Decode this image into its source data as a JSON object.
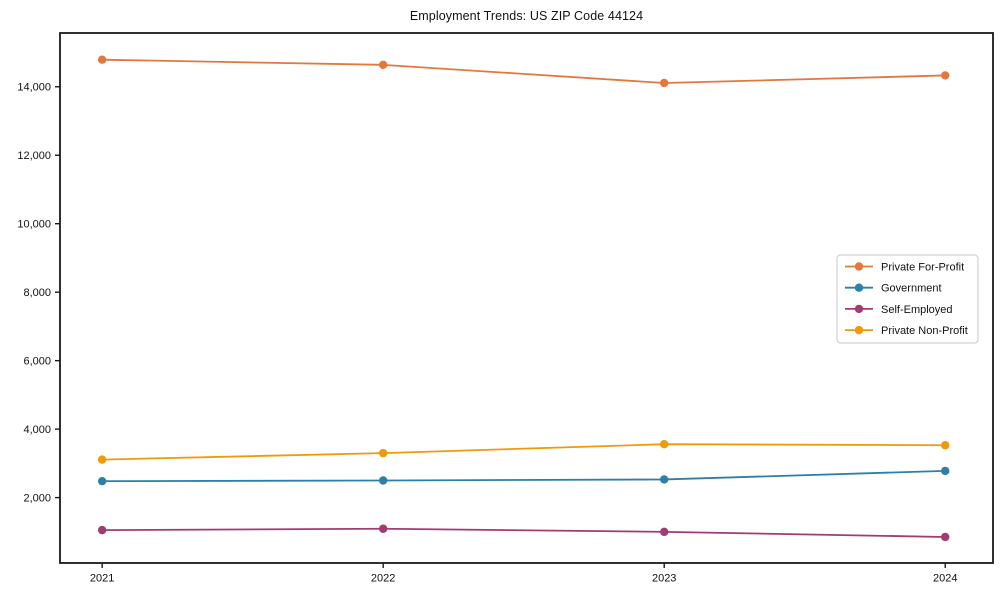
{
  "figure": {
    "title": "Employment Trends: US ZIP Code 44124"
  },
  "chart_data": {
    "type": "line",
    "title": "Employment Trends: US ZIP Code 44124",
    "xlabel": "",
    "ylabel": "",
    "x": [
      2021,
      2022,
      2023,
      2024
    ],
    "x_tick_labels": [
      "2021",
      "2022",
      "2023",
      "2024"
    ],
    "xlim": [
      2020.85,
      2024.17
    ],
    "ylim": [
      90,
      15570
    ],
    "yticks": [
      2000,
      4000,
      6000,
      8000,
      10000,
      12000,
      14000
    ],
    "ytick_labels": [
      "2,000",
      "4,000",
      "6,000",
      "8,000",
      "10,000",
      "12,000",
      "14,000"
    ],
    "grid": false,
    "legend": {
      "position": "right-center",
      "labels": [
        "Private For-Profit",
        "Government",
        "Self-Employed",
        "Private Non-Profit"
      ]
    },
    "series": [
      {
        "name": "Private For-Profit",
        "color": "#E1793F",
        "values": [
          14790,
          14640,
          14110,
          14330
        ]
      },
      {
        "name": "Government",
        "color": "#2E7FA8",
        "values": [
          2480,
          2500,
          2530,
          2780
        ]
      },
      {
        "name": "Self-Employed",
        "color": "#A23B72",
        "values": [
          1050,
          1090,
          1000,
          850
        ]
      },
      {
        "name": "Private Non-Profit",
        "color": "#F0990B",
        "values": [
          3110,
          3300,
          3560,
          3530
        ]
      }
    ]
  },
  "colors": {
    "background": "#ffffff",
    "spine": "#1a1a1a",
    "tick_text": "#111111",
    "legend_border": "#c9c9c9",
    "legend_background": "#ffffff"
  }
}
